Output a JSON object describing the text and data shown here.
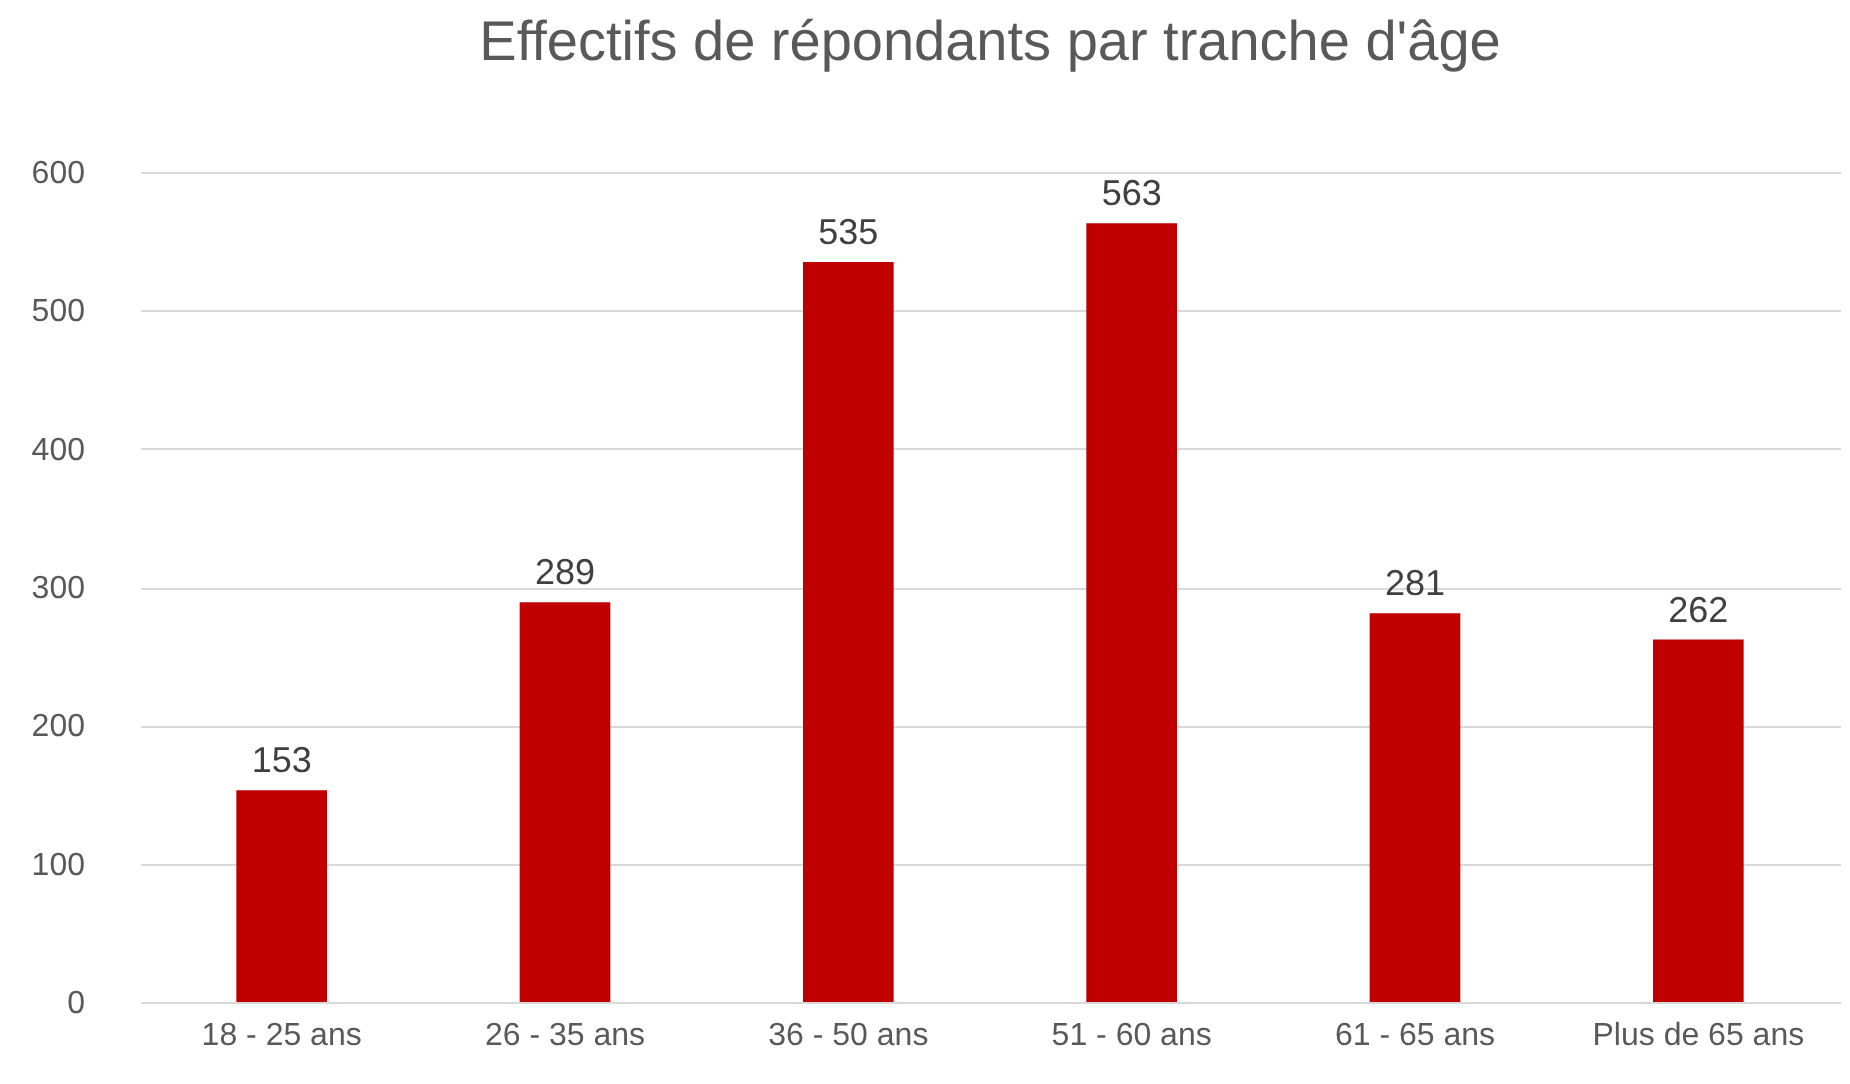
{
  "chart_data": {
    "type": "bar",
    "title": "Effectifs de répondants par tranche d'âge",
    "categories": [
      "18 - 25 ans",
      "26 - 35 ans",
      "36 - 50 ans",
      "51 - 60 ans",
      "61 - 65 ans",
      "Plus de 65 ans"
    ],
    "values": [
      153,
      289,
      535,
      563,
      281,
      262
    ],
    "color": "#c00000",
    "ylim": [
      0,
      600
    ],
    "yticks": [
      0,
      100,
      200,
      300,
      400,
      500,
      600
    ],
    "grid": "y",
    "data_labels": true
  }
}
